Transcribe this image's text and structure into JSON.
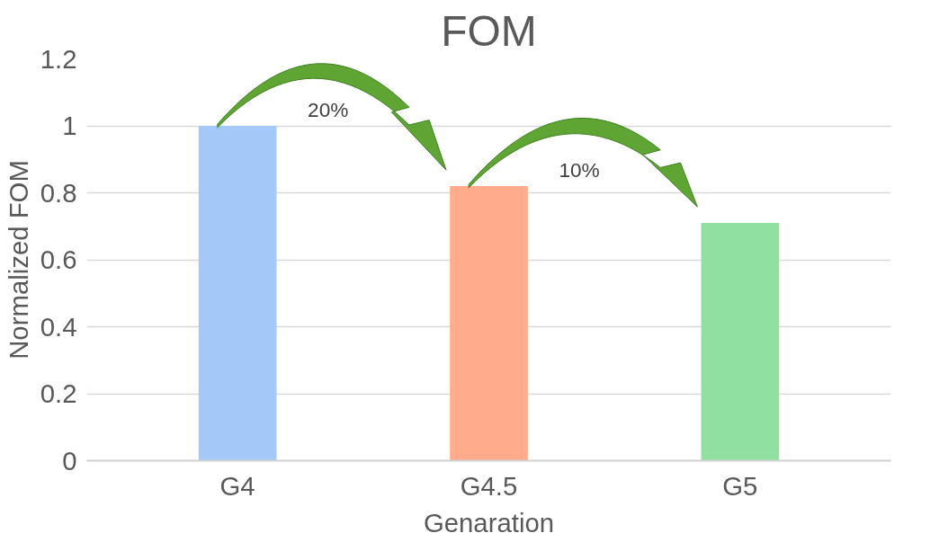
{
  "chart_data": {
    "type": "bar",
    "title": "FOM",
    "xlabel": "Genaration",
    "ylabel": "Normalized FOM",
    "categories": [
      "G4",
      "G4.5",
      "G5"
    ],
    "values": [
      1,
      0.82,
      0.71
    ],
    "colors": [
      "#a4c8f8",
      "#ffab8c",
      "#90e0a2"
    ],
    "ylim": [
      0,
      1.2
    ],
    "yticks": [
      0,
      0.2,
      0.4,
      0.6,
      0.8,
      1,
      1.2
    ],
    "grid": "y",
    "annotations": [
      "20%",
      "10%"
    ]
  }
}
